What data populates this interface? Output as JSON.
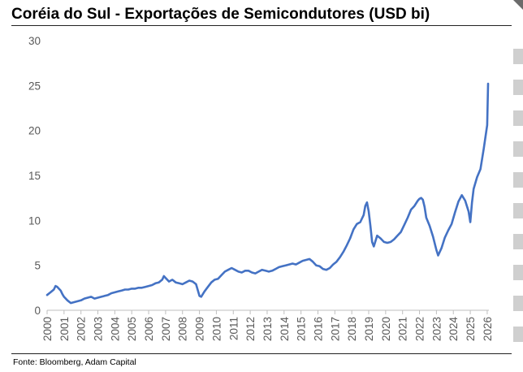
{
  "title": "Coréia do Sul - Exportações de Semicondutores (USD bi)",
  "source": "Fonte: Bloomberg, Adam Capital",
  "decorations": {
    "corner_color": "#6b6b6b",
    "edge_bar_color": "#cfcfcf"
  },
  "chart_data": {
    "type": "line",
    "title": "Coréia do Sul - Exportações de Semicondutores (USD bi)",
    "xlabel": "",
    "ylabel": "",
    "xlim": [
      2000,
      2026.1
    ],
    "ylim": [
      0,
      30
    ],
    "grid": false,
    "legend": "none",
    "y_ticks": [
      0,
      5,
      10,
      15,
      20,
      25,
      30
    ],
    "x_ticks": [
      2000,
      2001,
      2002,
      2003,
      2004,
      2005,
      2006,
      2007,
      2008,
      2009,
      2010,
      2011,
      2012,
      2013,
      2014,
      2015,
      2016,
      2017,
      2018,
      2019,
      2020,
      2021,
      2022,
      2023,
      2024,
      2025,
      2026
    ],
    "line_color": "#4472c4",
    "series": [
      {
        "x": [
          2000.0,
          2000.2,
          2000.4,
          2000.5,
          2000.6,
          2000.8,
          2000.9,
          2001.0,
          2001.2,
          2001.4,
          2001.6,
          2001.8,
          2002.0,
          2002.2,
          2002.4,
          2002.6,
          2002.8,
          2003.0,
          2003.2,
          2003.4,
          2003.6,
          2003.8,
          2004.0,
          2004.2,
          2004.4,
          2004.6,
          2004.8,
          2005.0,
          2005.2,
          2005.4,
          2005.6,
          2005.8,
          2006.0,
          2006.2,
          2006.4,
          2006.6,
          2006.8,
          2006.9,
          2007.0,
          2007.2,
          2007.4,
          2007.6,
          2007.8,
          2008.0,
          2008.2,
          2008.4,
          2008.6,
          2008.8,
          2009.0,
          2009.1,
          2009.3,
          2009.5,
          2009.7,
          2009.9,
          2010.1,
          2010.3,
          2010.5,
          2010.7,
          2010.9,
          2011.1,
          2011.3,
          2011.5,
          2011.7,
          2011.9,
          2012.1,
          2012.3,
          2012.5,
          2012.7,
          2012.9,
          2013.1,
          2013.3,
          2013.5,
          2013.7,
          2013.9,
          2014.1,
          2014.3,
          2014.5,
          2014.7,
          2014.9,
          2015.1,
          2015.3,
          2015.5,
          2015.7,
          2015.9,
          2016.1,
          2016.3,
          2016.5,
          2016.7,
          2016.9,
          2017.1,
          2017.3,
          2017.5,
          2017.7,
          2017.9,
          2018.1,
          2018.3,
          2018.5,
          2018.7,
          2018.8,
          2018.9,
          2019.0,
          2019.1,
          2019.2,
          2019.3,
          2019.5,
          2019.7,
          2019.9,
          2020.1,
          2020.3,
          2020.5,
          2020.7,
          2020.9,
          2021.1,
          2021.3,
          2021.5,
          2021.7,
          2021.9,
          2022.0,
          2022.1,
          2022.2,
          2022.3,
          2022.4,
          2022.6,
          2022.8,
          2023.0,
          2023.1,
          2023.3,
          2023.5,
          2023.7,
          2023.9,
          2024.1,
          2024.3,
          2024.5,
          2024.7,
          2024.9,
          2025.0,
          2025.1,
          2025.2,
          2025.4,
          2025.6,
          2025.8,
          2026.0,
          2026.05
        ],
        "y": [
          1.7,
          2.0,
          2.3,
          2.7,
          2.6,
          2.2,
          1.8,
          1.5,
          1.1,
          0.8,
          0.9,
          1.0,
          1.1,
          1.3,
          1.4,
          1.5,
          1.3,
          1.4,
          1.5,
          1.6,
          1.7,
          1.9,
          2.0,
          2.1,
          2.2,
          2.3,
          2.3,
          2.4,
          2.4,
          2.5,
          2.5,
          2.6,
          2.7,
          2.8,
          3.0,
          3.1,
          3.4,
          3.8,
          3.6,
          3.2,
          3.4,
          3.1,
          3.0,
          2.9,
          3.1,
          3.3,
          3.2,
          2.9,
          1.6,
          1.5,
          2.1,
          2.6,
          3.1,
          3.4,
          3.5,
          3.9,
          4.3,
          4.5,
          4.7,
          4.5,
          4.3,
          4.2,
          4.4,
          4.4,
          4.2,
          4.1,
          4.3,
          4.5,
          4.4,
          4.3,
          4.4,
          4.6,
          4.8,
          4.9,
          5.0,
          5.1,
          5.2,
          5.1,
          5.3,
          5.5,
          5.6,
          5.7,
          5.4,
          5.0,
          4.9,
          4.6,
          4.5,
          4.7,
          5.1,
          5.4,
          5.9,
          6.5,
          7.2,
          8.0,
          9.0,
          9.6,
          9.8,
          10.6,
          11.6,
          12.0,
          11.0,
          9.4,
          7.6,
          7.1,
          8.3,
          8.0,
          7.6,
          7.5,
          7.6,
          7.9,
          8.3,
          8.7,
          9.5,
          10.3,
          11.2,
          11.6,
          12.2,
          12.4,
          12.5,
          12.3,
          11.5,
          10.3,
          9.4,
          8.2,
          6.7,
          6.1,
          6.9,
          8.1,
          8.9,
          9.6,
          10.9,
          12.1,
          12.8,
          12.2,
          11.0,
          9.8,
          12.0,
          13.5,
          14.8,
          15.7,
          18.0,
          20.6,
          25.2
        ]
      }
    ]
  }
}
